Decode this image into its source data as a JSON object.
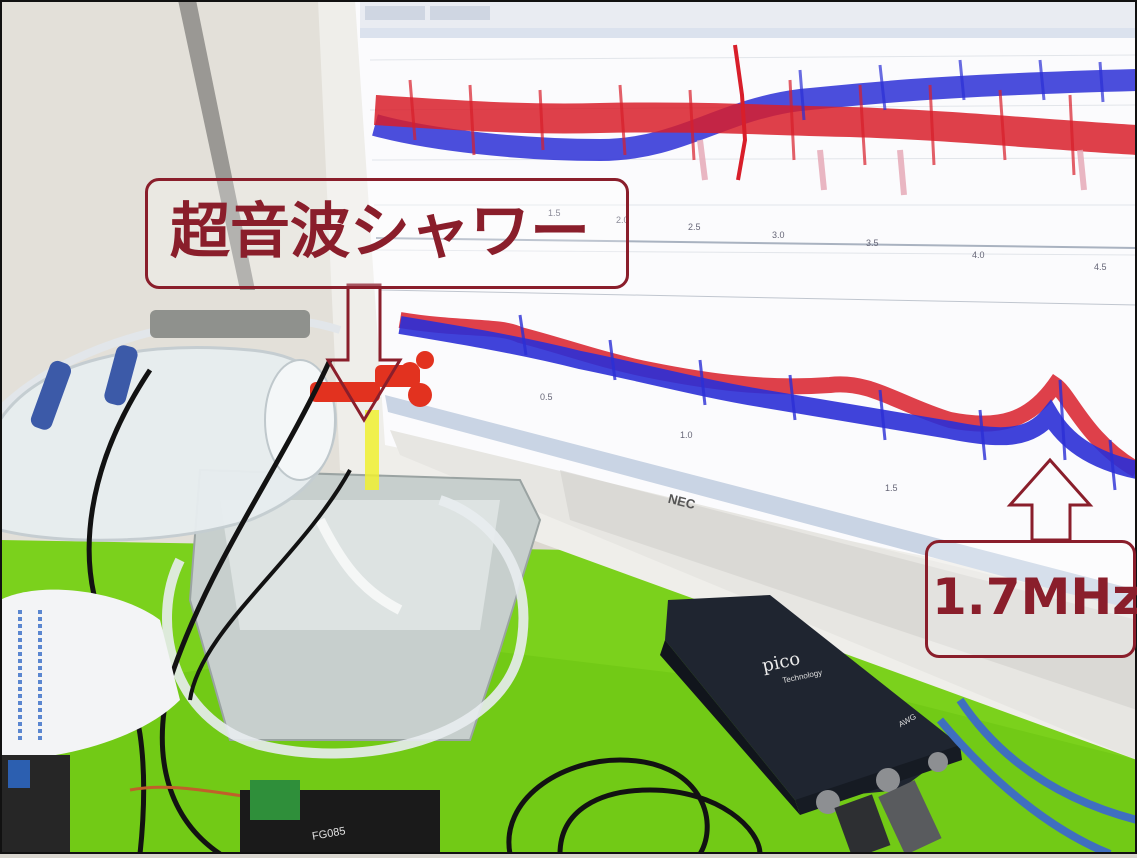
{
  "annotations": {
    "shower_label": "超音波シャワー",
    "frequency_label": "1.7MHz"
  },
  "oscilloscope_screen": {
    "upper_axis_ticks": [
      "1.5",
      "2.0",
      "2.5",
      "3.0",
      "3.5",
      "4.0",
      "4.5"
    ],
    "lower_axis_ticks": [
      "0.5",
      "1.0",
      "1.5"
    ],
    "trace_colors": {
      "channel_a": "#2b2fd6",
      "channel_b": "#d81e2a"
    }
  },
  "monitor_brand": "NEC",
  "device": {
    "brand": "pico",
    "subtitle": "Technology",
    "port_label": "AWG"
  },
  "generator_label": "FG085",
  "colors": {
    "annotation": "#8a1e2b",
    "mat": "#7bd11c"
  }
}
